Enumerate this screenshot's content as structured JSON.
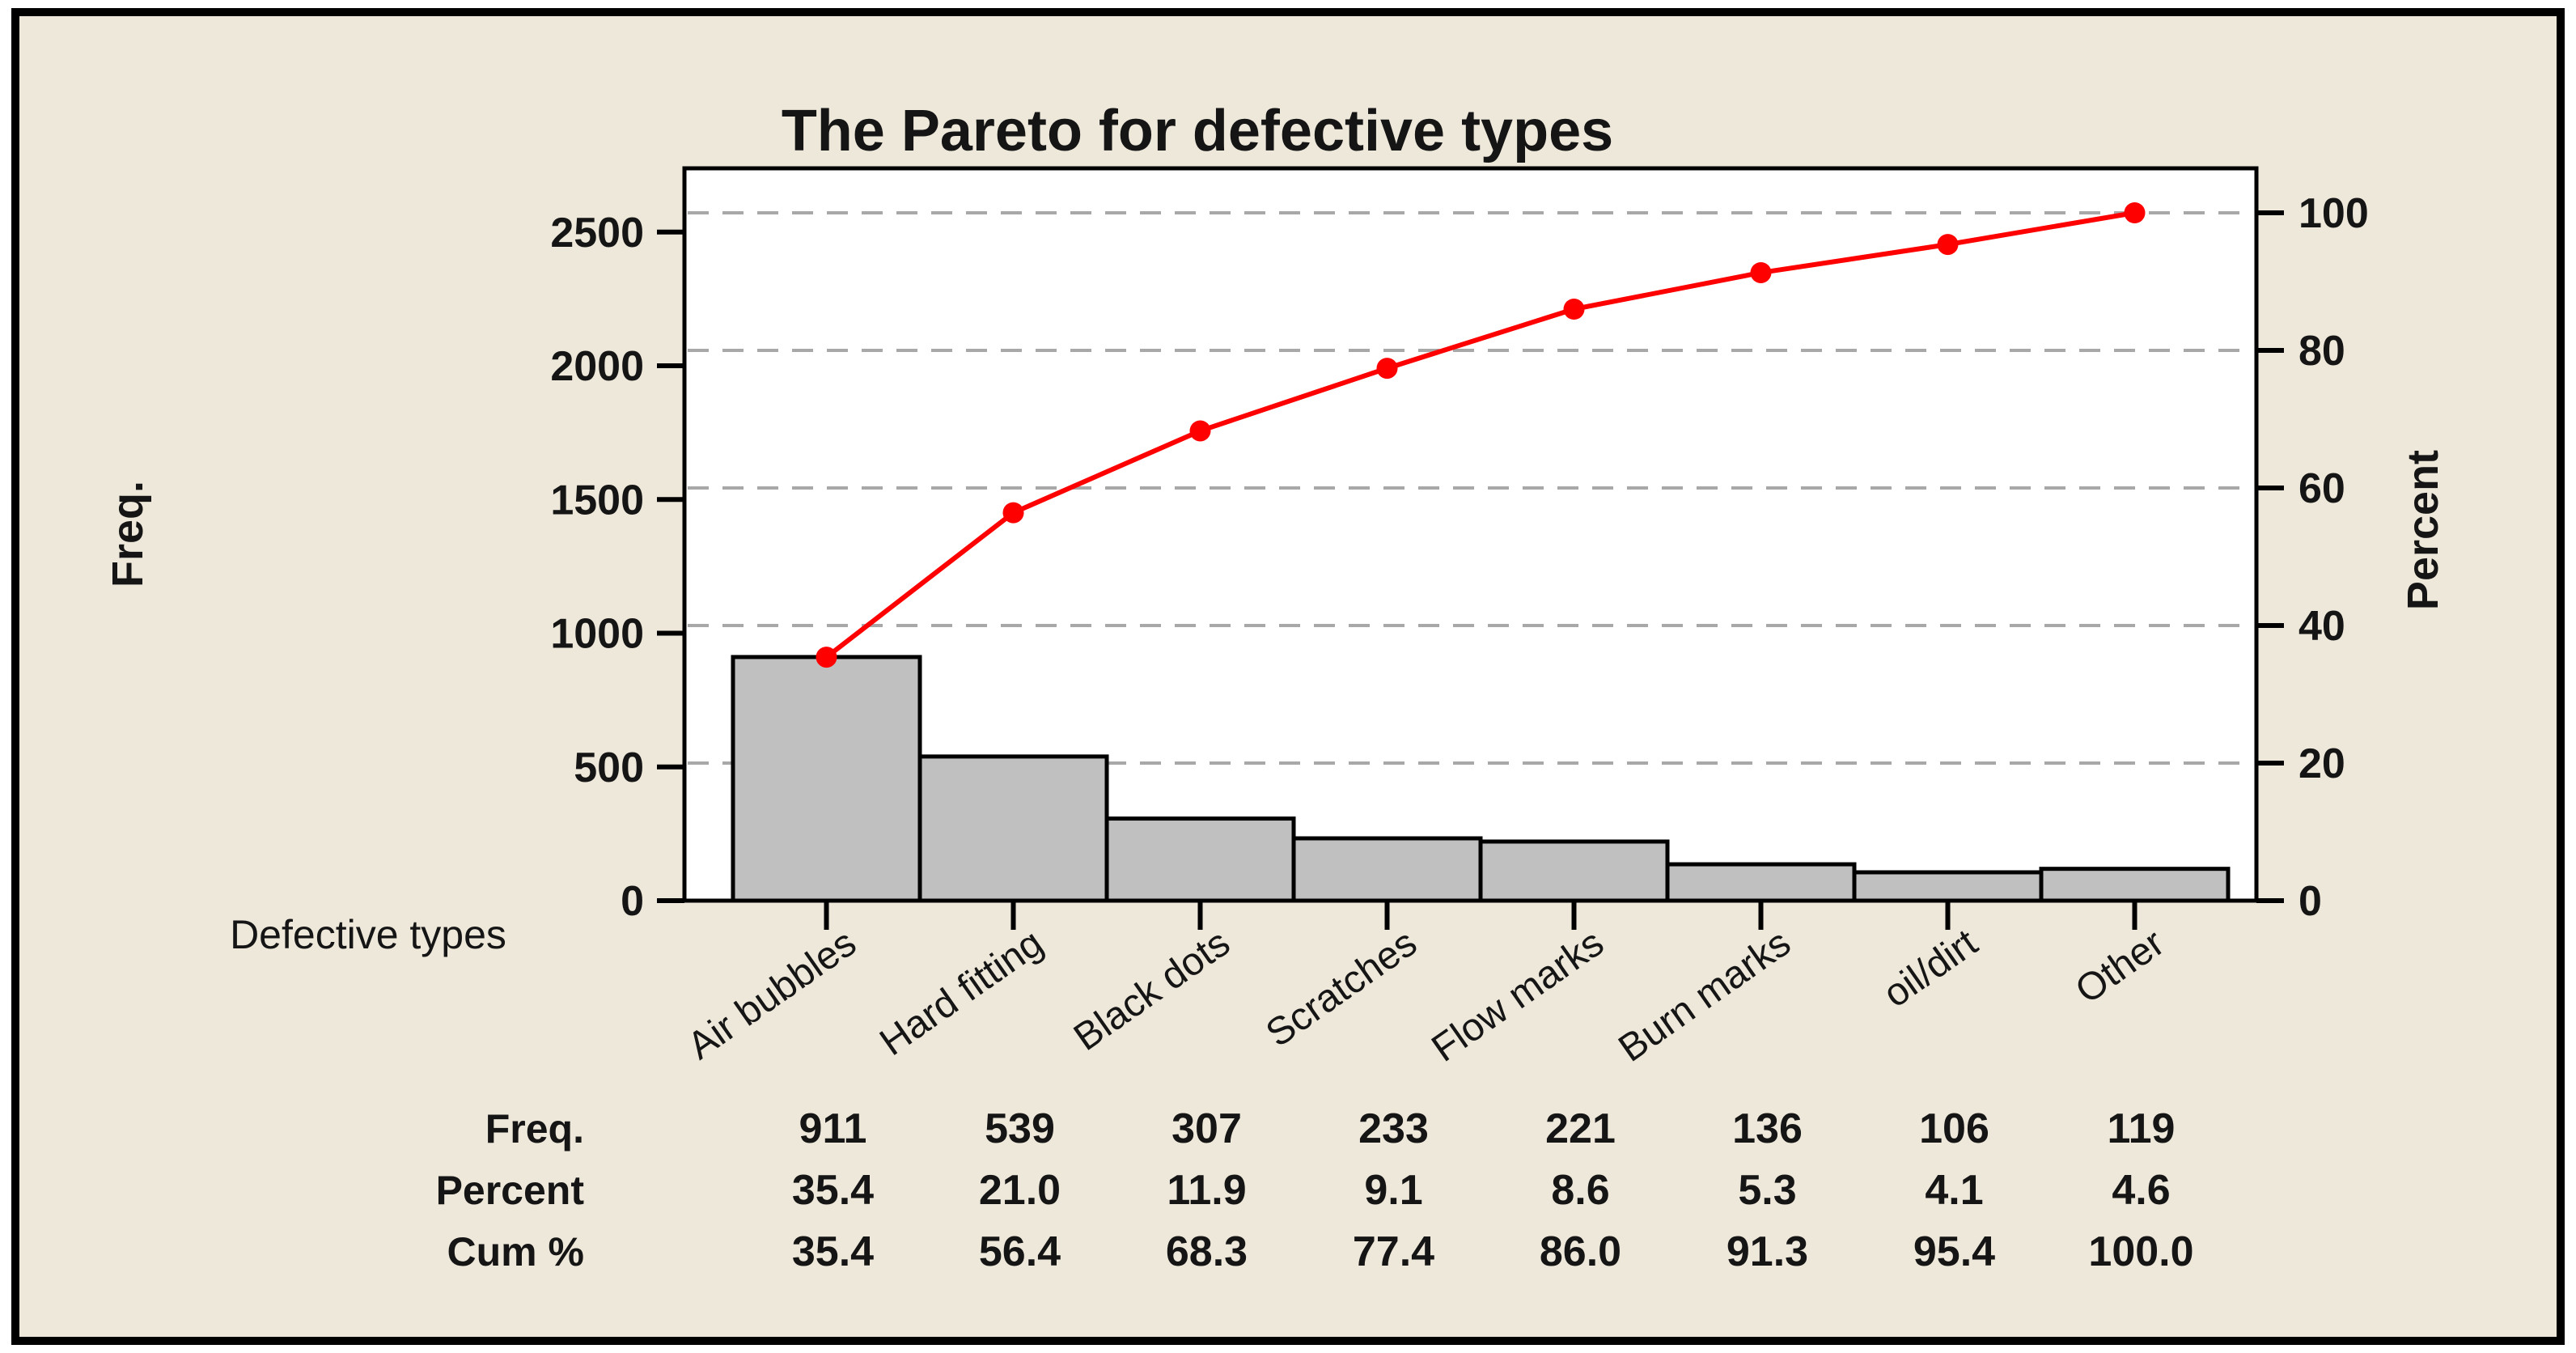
{
  "figure": {
    "title": "The Pareto for defective types",
    "left_axis_label": "Freq.",
    "right_axis_label": "Percent",
    "x_axis_label": "Defective types"
  },
  "chart_data": {
    "type": "bar",
    "subtype": "pareto (bar + cumulative percent line)",
    "title": "The Pareto for defective types",
    "xlabel": "Defective types",
    "ylabel": "Freq.",
    "ylabel_right": "Percent",
    "categories": [
      "Air bubbles",
      "Hard fitting",
      "Black dots",
      "Scratches",
      "Flow marks",
      "Burn marks",
      "oil/dirt",
      "Other"
    ],
    "series": [
      {
        "name": "Freq.",
        "type": "bar",
        "values": [
          911,
          539,
          307,
          233,
          221,
          136,
          106,
          119
        ]
      },
      {
        "name": "Cum %",
        "type": "line",
        "values": [
          35.4,
          56.4,
          68.3,
          77.4,
          86.0,
          91.3,
          95.4,
          100.0
        ]
      }
    ],
    "percent_of_total": [
      35.4,
      21.0,
      11.9,
      9.1,
      8.6,
      5.3,
      4.1,
      4.6
    ],
    "total_freq": 2572,
    "left_axis_ticks": [
      0,
      500,
      1000,
      1500,
      2000,
      2500
    ],
    "right_axis_ticks": [
      0,
      20,
      40,
      60,
      80,
      100
    ],
    "ylim_left": [
      0,
      2738
    ],
    "ylim_right": [
      0,
      106.5
    ],
    "grid": "horizontal dashed lines at right-axis ticks 20,40,60,80,100",
    "legend_position": "none",
    "colors": {
      "bar_fill": "#c0c0c0",
      "bar_stroke": "#000000",
      "line": "#ff0000",
      "marker": "#ff0000",
      "grid": "#a8a8a8",
      "plot_background": "#ffffff",
      "figure_background": "#eee8da",
      "frame_stroke": "#000000",
      "text": "#151515"
    }
  },
  "table": {
    "rows": [
      {
        "label": "Freq.",
        "values": [
          "911",
          "539",
          "307",
          "233",
          "221",
          "136",
          "106",
          "119"
        ]
      },
      {
        "label": "Percent",
        "values": [
          "35.4",
          "21.0",
          "11.9",
          "9.1",
          "8.6",
          "5.3",
          "4.1",
          "4.6"
        ]
      },
      {
        "label": "Cum %",
        "values": [
          "35.4",
          "56.4",
          "68.3",
          "77.4",
          "86.0",
          "91.3",
          "95.4",
          "100.0"
        ]
      }
    ]
  }
}
